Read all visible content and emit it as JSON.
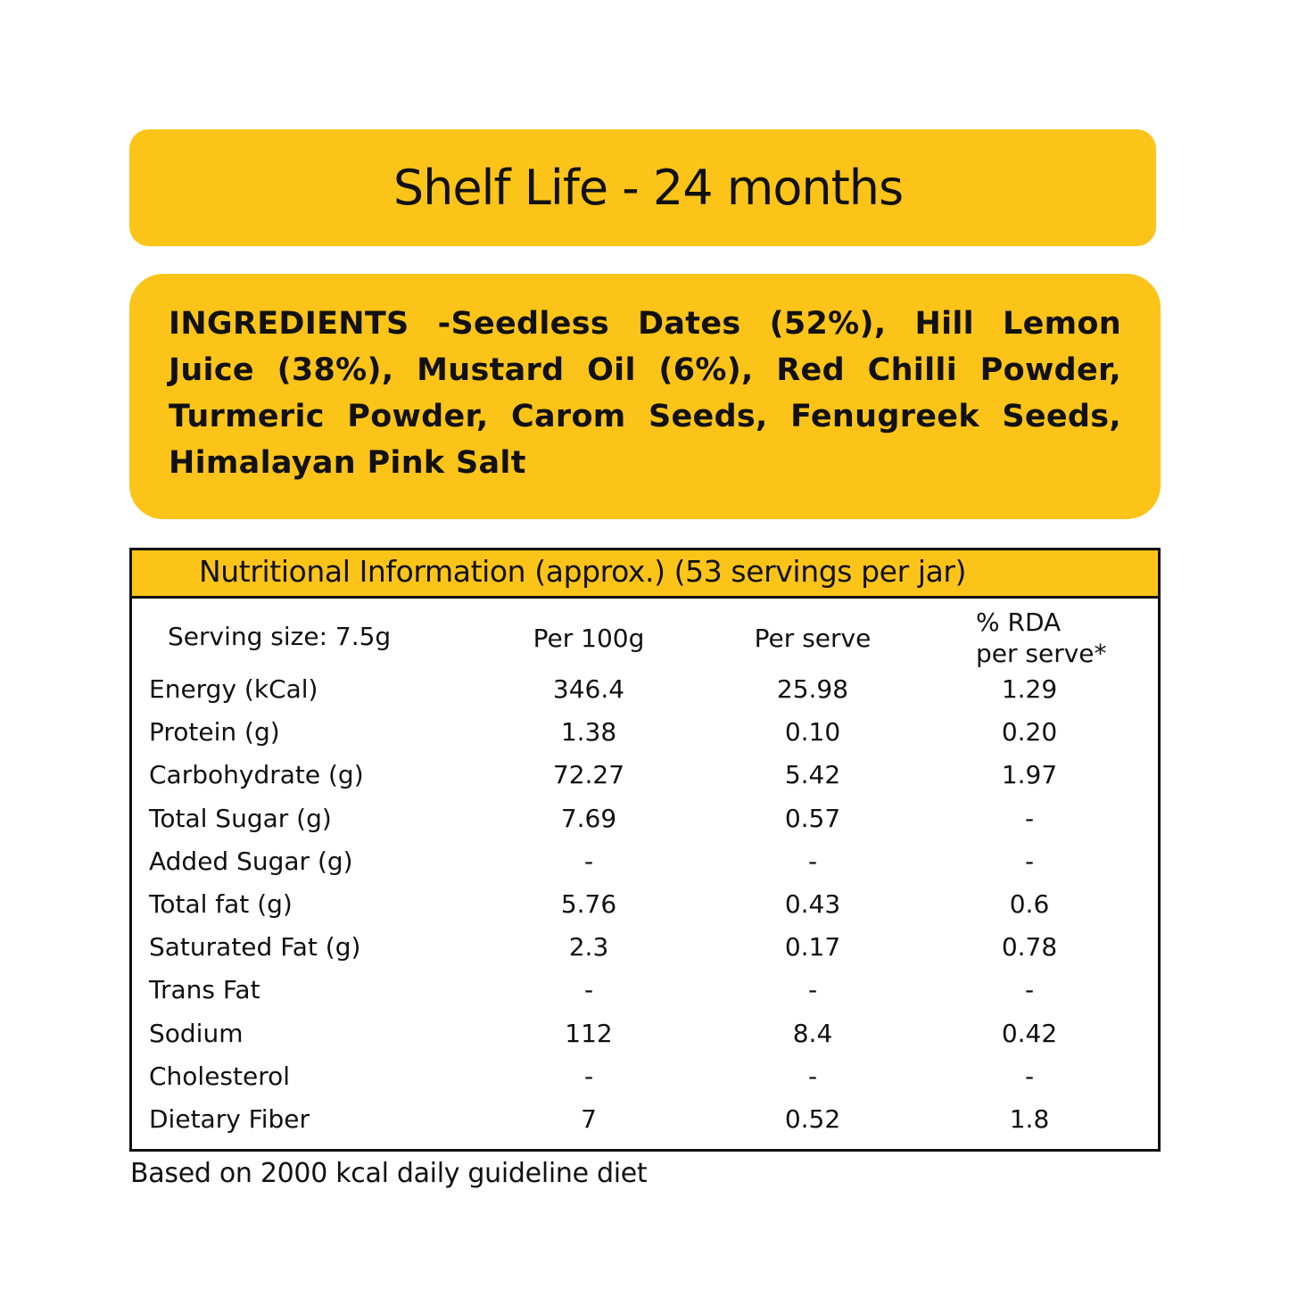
{
  "colors": {
    "accent": "#FCC419",
    "text": "#111111",
    "background": "#FFFFFF"
  },
  "shelf_life": {
    "text": "Shelf Life - 24 months"
  },
  "ingredients": {
    "text": "INGREDIENTS -Seedless Dates (52%), Hill Lemon Juice (38%), Mustard Oil (6%), Red Chilli Powder, Turmeric Powder, Carom Seeds, Fenugreek Seeds, Himalayan Pink Salt"
  },
  "nutrition": {
    "title": "Nutritional Information (approx.) (53 servings per jar)",
    "headers": {
      "serving": "Serving size: 7.5g",
      "per100": "Per 100g",
      "perserve": "Per serve",
      "rda_line1": "% RDA",
      "rda_line2": "per serve*"
    },
    "rows": [
      {
        "name": "Energy (kCal)",
        "per100": "346.4",
        "perserve": "25.98",
        "rda": "1.29"
      },
      {
        "name": "Protein (g)",
        "per100": "1.38",
        "perserve": "0.10",
        "rda": "0.20"
      },
      {
        "name": "Carbohydrate (g)",
        "per100": "72.27",
        "perserve": "5.42",
        "rda": "1.97"
      },
      {
        "name": "Total Sugar (g)",
        "per100": "7.69",
        "perserve": "0.57",
        "rda": "-"
      },
      {
        "name": "Added Sugar (g)",
        "per100": "-",
        "perserve": "-",
        "rda": "-"
      },
      {
        "name": "Total fat (g)",
        "per100": "5.76",
        "perserve": "0.43",
        "rda": "0.6"
      },
      {
        "name": "Saturated Fat (g)",
        "per100": "2.3",
        "perserve": "0.17",
        "rda": "0.78"
      },
      {
        "name": "Trans Fat",
        "per100": "-",
        "perserve": "-",
        "rda": "-"
      },
      {
        "name": "Sodium",
        "per100": "112",
        "perserve": "8.4",
        "rda": "0.42"
      },
      {
        "name": "Cholesterol",
        "per100": "-",
        "perserve": "-",
        "rda": "-"
      },
      {
        "name": "Dietary Fiber",
        "per100": "7",
        "perserve": "0.52",
        "rda": "1.8"
      }
    ]
  },
  "footnote": {
    "text": "Based on 2000 kcal daily guideline diet"
  }
}
